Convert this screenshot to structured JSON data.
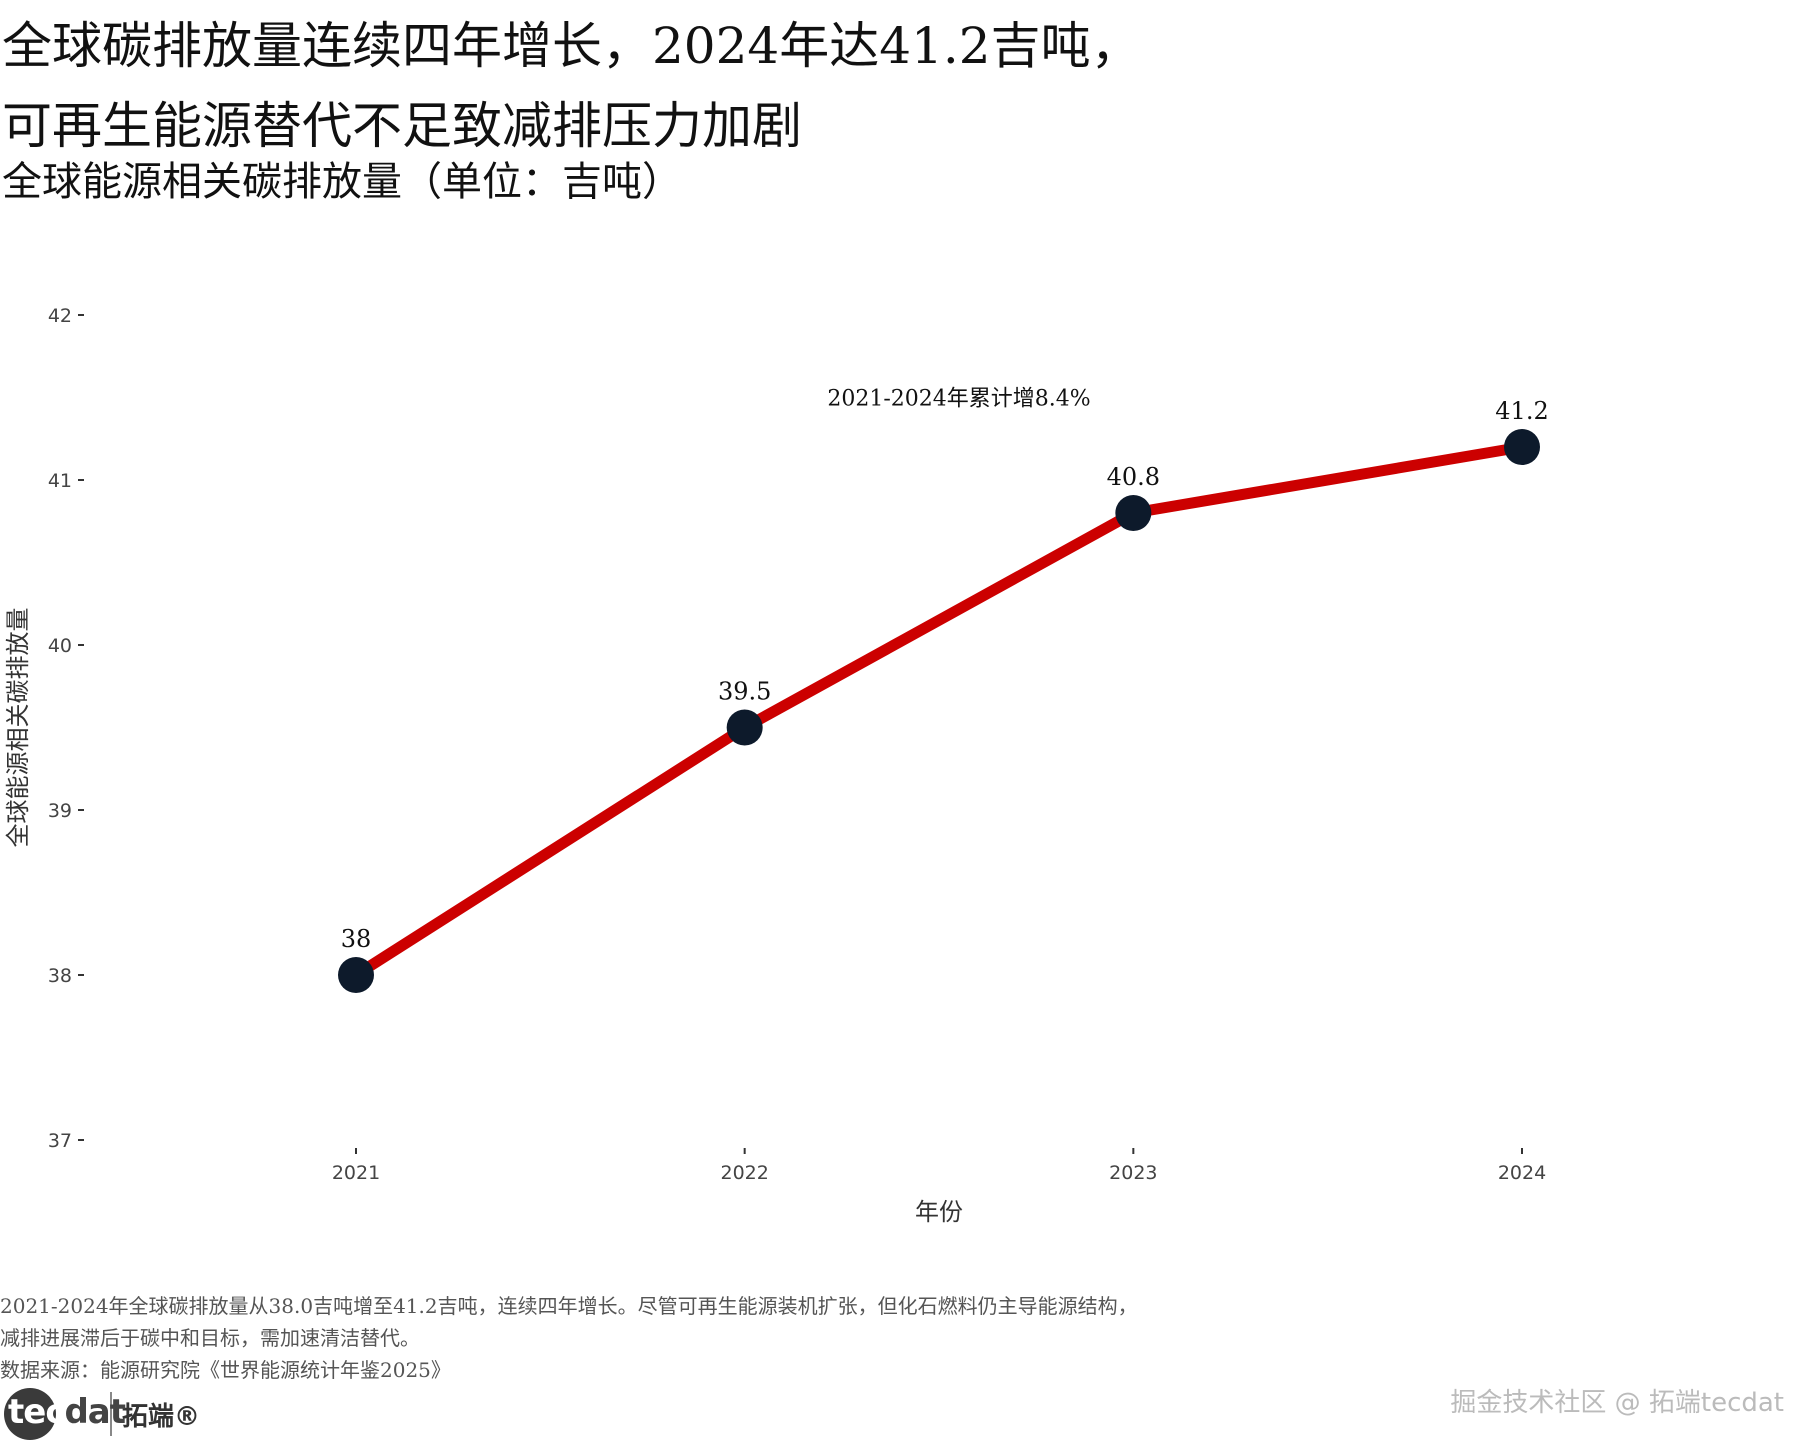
{
  "header": {
    "title_line1": "全球碳排放量连续四年增长，2024年达41.2吉吨，",
    "title_line2": "可再生能源替代不足致减排压力加剧",
    "subtitle": "全球能源相关碳排放量（单位：吉吨）"
  },
  "chart_data": {
    "type": "line",
    "x": [
      "2021",
      "2022",
      "2023",
      "2024"
    ],
    "series": [
      {
        "values": [
          38.0,
          39.5,
          40.8,
          41.2
        ],
        "labels": [
          "38",
          "39.5",
          "40.8",
          "41.2"
        ]
      }
    ],
    "xlabel": "年份",
    "ylabel": "全球能源相关碳排放量",
    "ylim": [
      37,
      42
    ],
    "yticks": [
      37,
      38,
      39,
      40,
      41,
      42
    ],
    "annotation": {
      "text": "2021-2024年累计增8.4%",
      "x_between": [
        "2022",
        "2023"
      ],
      "y": 41.5
    },
    "grid": false,
    "line_color": "#cc0000",
    "marker_color": "#0d1a2b"
  },
  "caption": {
    "line1": "2021-2024年全球碳排放量从38.0吉吨增至41.2吉吨，连续四年增长。尽管可再生能源装机扩张，但化石燃料仍主导能源结构，",
    "line2": "减排进展滞后于碳中和目标，需加速清洁替代。",
    "source": "数据来源：能源研究院《世界能源统计年鉴2025》"
  },
  "logo": {
    "tec": "tec",
    "dat": "dat",
    "cn": "拓端®"
  },
  "watermark": "掘金技术社区 @ 拓端tecdat"
}
